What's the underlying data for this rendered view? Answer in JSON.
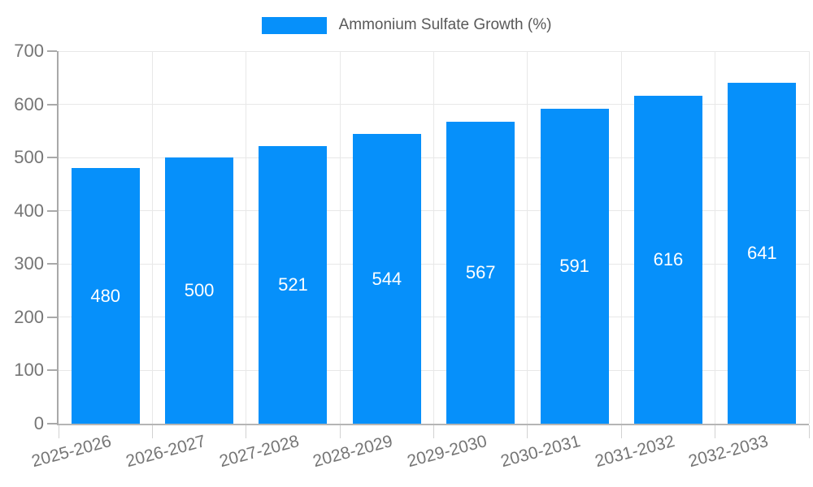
{
  "legend": {
    "label": "Ammonium Sulfate Growth (%)"
  },
  "colors": {
    "bar": "#0690fa",
    "grid": "#e8e8e8",
    "axis": "#a9a9a9",
    "tick_text": "#757575",
    "legend_text": "#595959",
    "bar_label_text": "#ffffff"
  },
  "chart_data": {
    "type": "bar",
    "title": "Ammonium Sulfate Growth (%)",
    "categories": [
      "2025-2026",
      "2026-2027",
      "2027-2028",
      "2028-2029",
      "2029-2030",
      "2030-2031",
      "2031-2032",
      "2032-2033"
    ],
    "values": [
      480,
      500,
      521,
      544,
      567,
      591,
      616,
      641
    ],
    "xlabel": "",
    "ylabel": "",
    "ylim": [
      0,
      700
    ],
    "y_ticks": [
      0,
      100,
      200,
      300,
      400,
      500,
      600,
      700
    ],
    "grid": "horizontal and vertical",
    "legend_position": "top-center",
    "value_labels": "inside-middle, white",
    "x_label_rotation_deg": -15
  }
}
